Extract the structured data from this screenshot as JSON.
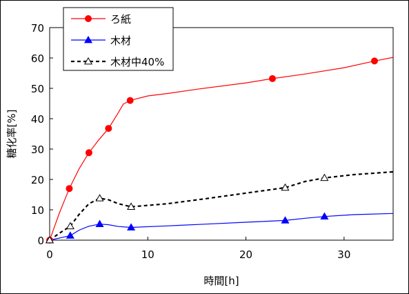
{
  "chart_data": {
    "type": "line",
    "xlabel": "時間[h]",
    "ylabel": "糖化率[%]",
    "xlim": [
      0,
      35
    ],
    "ylim": [
      0,
      70
    ],
    "x_ticks": [
      0,
      10,
      20,
      30
    ],
    "y_ticks": [
      0,
      10,
      20,
      30,
      40,
      50,
      60,
      70
    ],
    "grid": false,
    "legend_position": "top-left",
    "series": [
      {
        "name": "ろ紙",
        "color": "#ff0000",
        "marker": "circle",
        "line_style": "solid",
        "x": [
          0,
          2,
          4,
          6,
          8.2,
          22.7,
          33.1
        ],
        "y": [
          0,
          17,
          28.8,
          36.8,
          46,
          53.2,
          59
        ],
        "curve_x": [
          0,
          0.5,
          1,
          1.5,
          2,
          3,
          4,
          5,
          6,
          7,
          7.5,
          8.2,
          10,
          12,
          15,
          20,
          22.7,
          26,
          30,
          33.1,
          35
        ],
        "curve_y": [
          0,
          4.5,
          9,
          13,
          17,
          23.5,
          28.8,
          33,
          36.8,
          42,
          44.8,
          46,
          47.5,
          48.3,
          49.7,
          51.8,
          53.2,
          54.7,
          56.8,
          59,
          60.2
        ]
      },
      {
        "name": "木材",
        "color": "#0000ff",
        "marker": "triangle",
        "line_style": "solid",
        "x": [
          0,
          2.1,
          5.1,
          8.3,
          24,
          28
        ],
        "y": [
          0,
          1.5,
          5.3,
          4.2,
          6.5,
          7.8
        ],
        "curve_x": [
          0,
          1,
          2.1,
          3,
          4,
          5.1,
          6,
          7,
          8.3,
          12,
          16,
          20,
          24,
          26,
          28,
          31,
          35
        ],
        "curve_y": [
          0,
          0.7,
          1.5,
          3.3,
          4.6,
          5.3,
          5.1,
          4.5,
          4.2,
          4.7,
          5.3,
          5.9,
          6.5,
          7.2,
          7.8,
          8.4,
          8.8
        ]
      },
      {
        "name": "木材中40%",
        "color": "#000000",
        "marker": "open-triangle",
        "line_style": "dashed",
        "x": [
          0,
          2.1,
          5.1,
          8.3,
          24,
          28
        ],
        "y": [
          0,
          4.6,
          13.8,
          11,
          17.3,
          20.5
        ],
        "curve_x": [
          0,
          1,
          2.1,
          3,
          4,
          5.1,
          6,
          7,
          8.3,
          12,
          16,
          20,
          24,
          26,
          28,
          31,
          35
        ],
        "curve_y": [
          0,
          2.3,
          4.6,
          8.5,
          12,
          13.8,
          13.3,
          12,
          11,
          12,
          13.7,
          15.5,
          17.3,
          19.3,
          20.5,
          21.6,
          22.5
        ]
      }
    ]
  }
}
